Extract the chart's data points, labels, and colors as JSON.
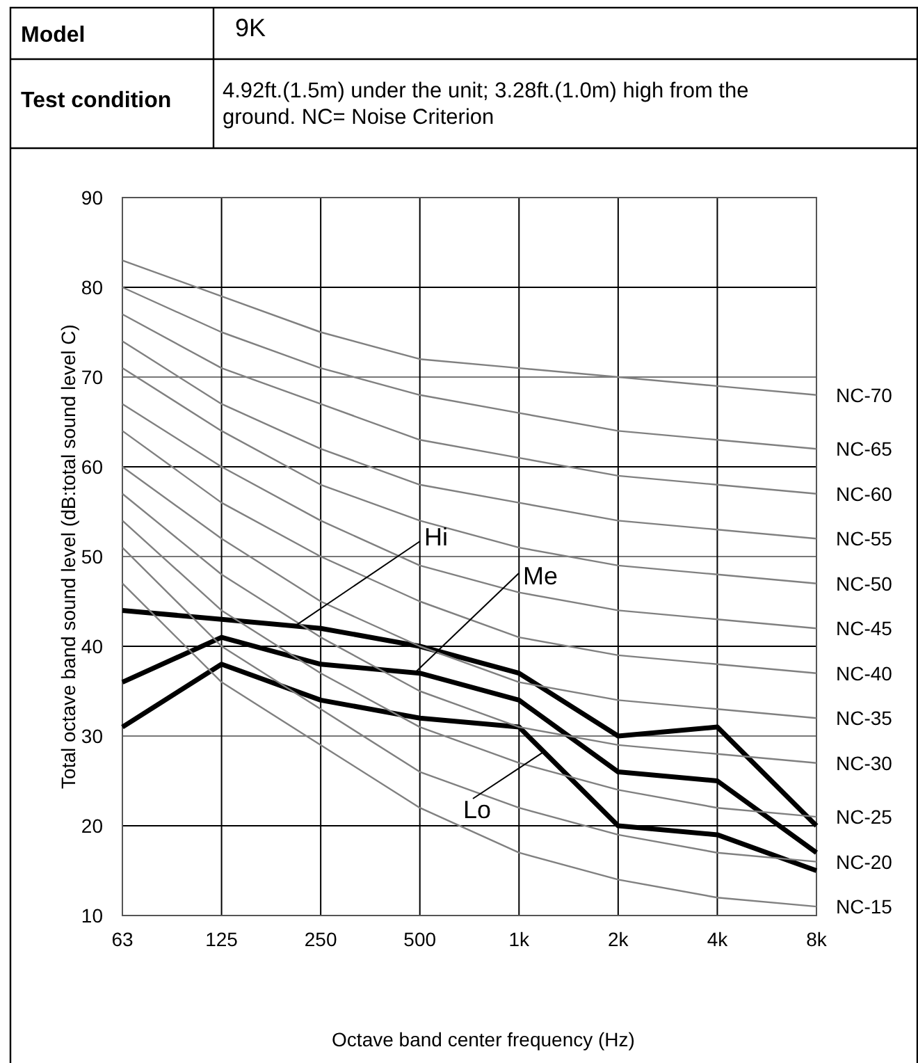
{
  "chart_data": {
    "type": "line",
    "annotations": [
      "Model",
      "9K",
      "Test condition",
      "4.92ft.(1.5m) under the unit; 3.28ft.(1.0m) high from the ground. NC= Noise Criterion"
    ],
    "xlabel": "Octave band center frequency (Hz)",
    "ylabel": "Total octave band sound level (dB:total sound level C)",
    "categories": [
      "63",
      "125",
      "250",
      "500",
      "1k",
      "2k",
      "4k",
      "8k"
    ],
    "ylim": [
      10,
      90
    ],
    "yticks": [
      10,
      20,
      30,
      40,
      50,
      60,
      70,
      80,
      90
    ],
    "grid": true,
    "series": [
      {
        "name": "Hi",
        "color": "#000000",
        "values": [
          44,
          43,
          42,
          40,
          37,
          30,
          31,
          20
        ]
      },
      {
        "name": "Me",
        "color": "#000000",
        "values": [
          36,
          41,
          38,
          37,
          34,
          26,
          25,
          17
        ]
      },
      {
        "name": "Lo",
        "color": "#000000",
        "values": [
          31,
          38,
          34,
          32,
          31,
          20,
          19,
          15
        ]
      },
      {
        "name": "NC-70",
        "color": "#808080",
        "values": [
          83,
          79,
          75,
          72,
          71,
          70,
          69,
          68
        ]
      },
      {
        "name": "NC-65",
        "color": "#808080",
        "values": [
          80,
          75,
          71,
          68,
          66,
          64,
          63,
          62
        ]
      },
      {
        "name": "NC-60",
        "color": "#808080",
        "values": [
          77,
          71,
          67,
          63,
          61,
          59,
          58,
          57
        ]
      },
      {
        "name": "NC-55",
        "color": "#808080",
        "values": [
          74,
          67,
          62,
          58,
          56,
          54,
          53,
          52
        ]
      },
      {
        "name": "NC-50",
        "color": "#808080",
        "values": [
          71,
          64,
          58,
          54,
          51,
          49,
          48,
          47
        ]
      },
      {
        "name": "NC-45",
        "color": "#808080",
        "values": [
          67,
          60,
          54,
          49,
          46,
          44,
          43,
          42
        ]
      },
      {
        "name": "NC-40",
        "color": "#808080",
        "values": [
          64,
          56,
          50,
          45,
          41,
          39,
          38,
          37
        ]
      },
      {
        "name": "NC-35",
        "color": "#808080",
        "values": [
          60,
          52,
          45,
          40,
          36,
          34,
          33,
          32
        ]
      },
      {
        "name": "NC-30",
        "color": "#808080",
        "values": [
          57,
          48,
          41,
          35,
          31,
          29,
          28,
          27
        ]
      },
      {
        "name": "NC-25",
        "color": "#808080",
        "values": [
          54,
          44,
          37,
          31,
          27,
          24,
          22,
          21
        ]
      },
      {
        "name": "NC-20",
        "color": "#808080",
        "values": [
          51,
          40,
          33,
          26,
          22,
          19,
          17,
          16
        ]
      },
      {
        "name": "NC-15",
        "color": "#808080",
        "values": [
          47,
          36,
          29,
          22,
          17,
          14,
          12,
          11
        ]
      }
    ]
  }
}
